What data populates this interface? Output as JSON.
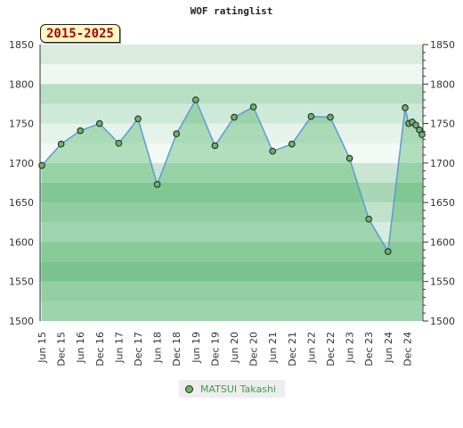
{
  "header": {
    "title": "WOF ratinglist",
    "badge": "2015-2025"
  },
  "legend": {
    "label": "MATSUI Takashi"
  },
  "colors": {
    "line": "#5b9bd5",
    "area": "#8fcf99",
    "marker": "#6ab46a",
    "legend_text": "#3aa04a"
  },
  "chart_data": {
    "type": "area",
    "title": "WOF ratinglist",
    "xlabel": "",
    "ylabel": "",
    "ylim": [
      1500,
      1850
    ],
    "y_ticks": [
      1500,
      1550,
      1600,
      1650,
      1700,
      1750,
      1800,
      1850
    ],
    "y_axes": [
      "left",
      "right"
    ],
    "x_tick_labels": [
      "Jun 15",
      "Dec 15",
      "Jun 16",
      "Dec 16",
      "Jun 17",
      "Dec 17",
      "Jun 18",
      "Dec 18",
      "Jun 19",
      "Dec 19",
      "Jun 20",
      "Dec 20",
      "Jun 21",
      "Dec 21",
      "Jun 22",
      "Dec 22",
      "Jun 23",
      "Dec 23",
      "Jun 24",
      "Dec 24"
    ],
    "legend_position": "bottom",
    "series": [
      {
        "name": "MATSUI Takashi",
        "x": [
          "Jun 15",
          "Dec 15",
          "Jun 16",
          "Dec 16",
          "Jun 17",
          "Dec 17",
          "Jun 18",
          "Dec 18",
          "Jun 19",
          "Dec 19",
          "Jun 20",
          "Dec 20",
          "Jun 21",
          "Dec 21",
          "Jun 22",
          "Dec 22",
          "Jun 23",
          "Dec 23",
          "Jun 24",
          "Dec 24",
          "Jan 25",
          "Feb 25",
          "Mar 25",
          "Apr 25",
          "May 25"
        ],
        "values": [
          1697,
          1724,
          1741,
          1750,
          1725,
          1756,
          1673,
          1737,
          1780,
          1722,
          1758,
          1771,
          1715,
          1724,
          1759,
          1758,
          1706,
          1629,
          1588,
          1770,
          1750,
          1752,
          1748,
          1742,
          1736
        ]
      }
    ]
  }
}
